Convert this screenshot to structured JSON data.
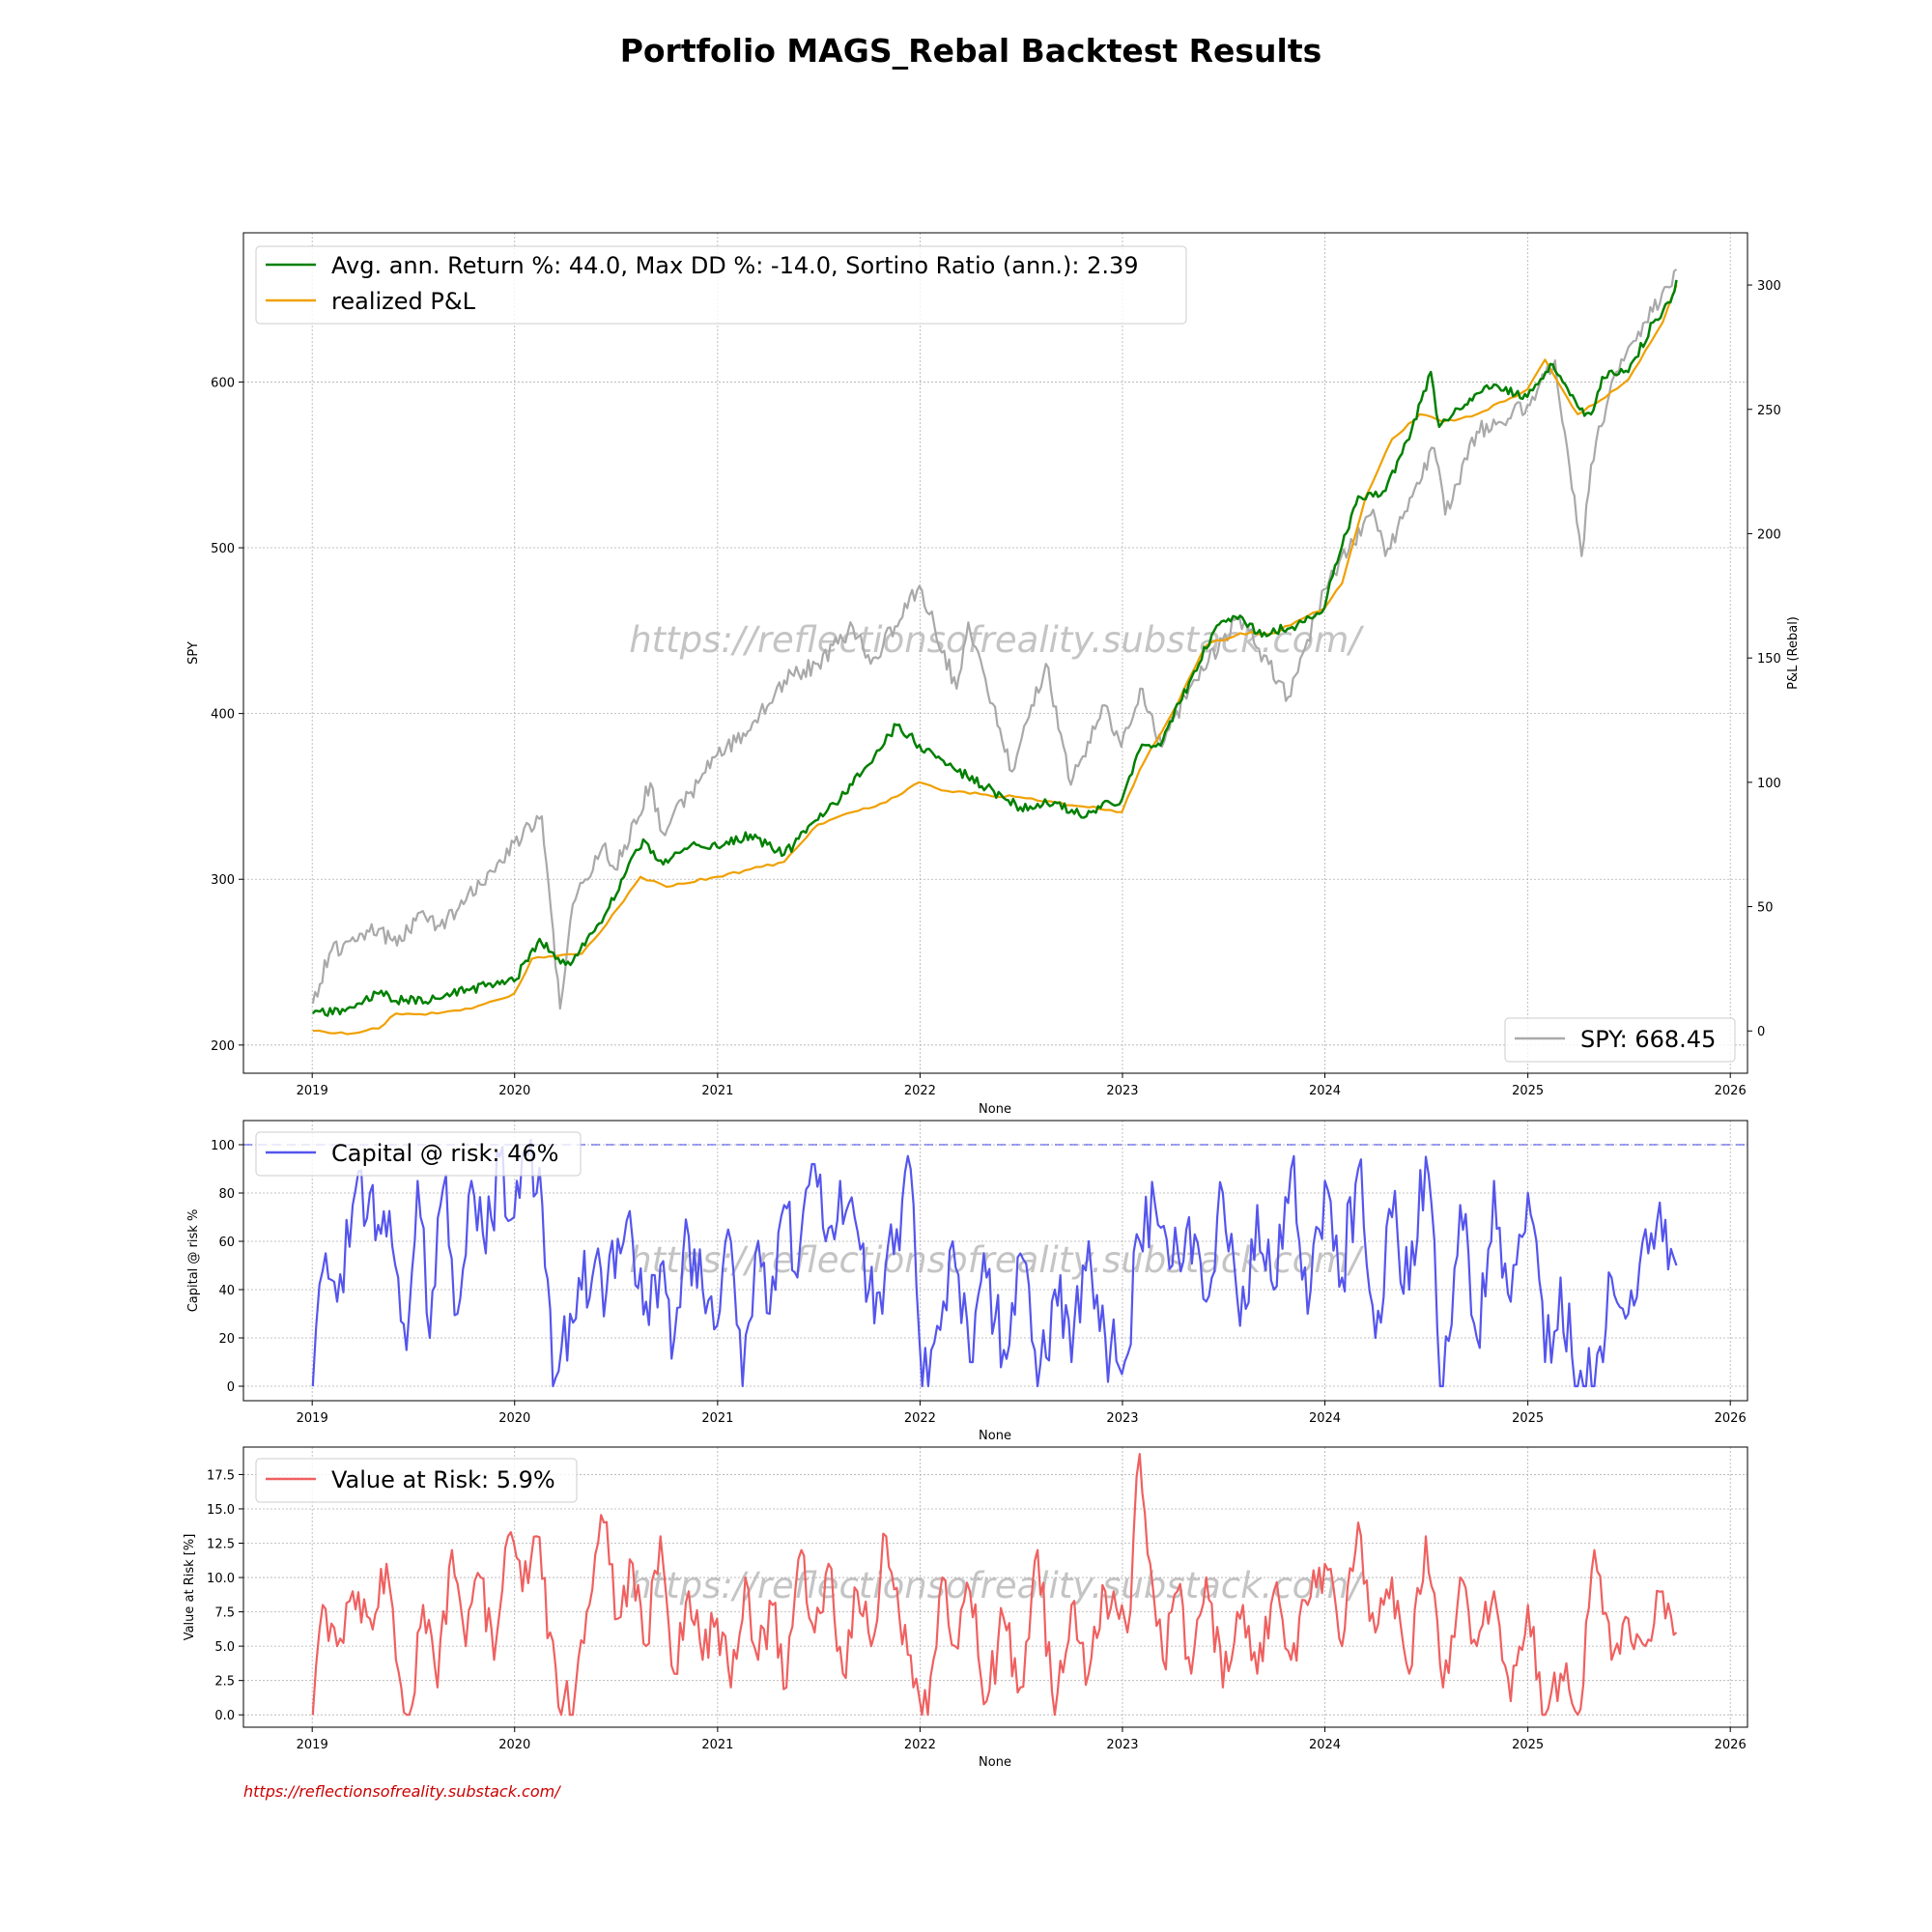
{
  "title": "Portfolio MAGS_Rebal Backtest Results",
  "footer_url": "https://reflectionsofreality.substack.com/",
  "watermark": "https://reflectionsofreality.substack.com/",
  "colors": {
    "pnl": "#008000",
    "realized": "#f0a000",
    "spy": "#a9a9a9",
    "car": "#5555ee",
    "var": "#f06060",
    "footer": "#cc0000"
  },
  "chart_data": [
    {
      "type": "line",
      "xlabel": "None",
      "ylabel_left": "SPY",
      "ylabel_right": "P&L (Rebal)",
      "x_ticks": [
        "2019",
        "2020",
        "2021",
        "2022",
        "2023",
        "2024",
        "2025",
        "2026"
      ],
      "xlim": [
        "2018-08-30",
        "2026-02-01"
      ],
      "y_left_ticks": [
        "200",
        "300",
        "400",
        "500",
        "600"
      ],
      "y_left_lim": [
        183,
        690
      ],
      "y_right_ticks": [
        "0",
        "50",
        "100",
        "150",
        "200",
        "250",
        "300"
      ],
      "y_right_lim": [
        -17,
        321
      ],
      "grid": true,
      "legend_top_left": {
        "pnl": "Avg. ann. Return %: 44.0, Max DD %: -14.0, Sortino Ratio (ann.): 2.39",
        "realized": "realized P&L"
      },
      "legend_bottom_right": {
        "spy": "SPY: 668.45"
      },
      "series": [
        {
          "name": "Avg. ann. Return %: 44.0, Max DD %: -14.0, Sortino Ratio (ann.): 2.39",
          "axis": "right",
          "x": [
            "2019-01-02",
            "2019-03-01",
            "2019-05-01",
            "2019-06-15",
            "2019-08-15",
            "2019-10-15",
            "2019-12-31",
            "2020-02-15",
            "2020-03-15",
            "2020-04-15",
            "2020-06-15",
            "2020-08-20",
            "2020-09-25",
            "2020-11-15",
            "2020-12-31",
            "2021-03-01",
            "2021-05-01",
            "2021-07-01",
            "2021-09-01",
            "2021-11-20",
            "2021-12-31",
            "2022-03-01",
            "2022-05-01",
            "2022-07-01",
            "2022-09-01",
            "2022-10-15",
            "2022-12-31",
            "2023-02-01",
            "2023-03-15",
            "2023-05-01",
            "2023-06-20",
            "2023-08-01",
            "2023-09-01",
            "2023-10-30",
            "2023-12-31",
            "2024-01-15",
            "2024-03-01",
            "2024-04-15",
            "2024-06-01",
            "2024-07-10",
            "2024-07-25",
            "2024-09-01",
            "2024-11-01",
            "2024-12-31",
            "2025-01-15",
            "2025-02-15",
            "2025-04-05",
            "2025-04-25",
            "2025-05-15",
            "2025-07-01",
            "2025-08-15",
            "2025-09-15",
            "2025-09-26"
          ],
          "y": [
            7,
            8,
            15,
            12,
            13,
            17,
            20,
            37,
            29,
            28,
            48,
            77,
            67,
            75,
            74,
            79,
            71,
            85,
            99,
            123,
            115,
            106,
            98,
            90,
            92,
            87,
            93,
            113,
            117,
            140,
            163,
            167,
            160,
            162,
            170,
            183,
            215,
            217,
            238,
            265,
            243,
            250,
            260,
            255,
            260,
            268,
            250,
            248,
            263,
            265,
            285,
            293,
            302
          ]
        },
        {
          "name": "realized P&L",
          "axis": "right",
          "x": [
            "2019-01-02",
            "2019-03-15",
            "2019-05-01",
            "2019-06-01",
            "2019-08-15",
            "2019-10-15",
            "2019-12-31",
            "2020-02-01",
            "2020-03-15",
            "2020-05-01",
            "2020-06-15",
            "2020-08-15",
            "2020-10-01",
            "2020-12-31",
            "2021-03-01",
            "2021-05-01",
            "2021-07-01",
            "2021-09-01",
            "2021-11-01",
            "2021-12-31",
            "2022-03-01",
            "2022-05-01",
            "2022-07-01",
            "2022-09-01",
            "2022-12-31",
            "2023-02-01",
            "2023-04-01",
            "2023-06-01",
            "2023-08-01",
            "2023-10-01",
            "2023-12-31",
            "2024-02-01",
            "2024-03-15",
            "2024-05-01",
            "2024-06-20",
            "2024-08-01",
            "2024-10-01",
            "2024-12-31",
            "2025-02-01",
            "2025-04-01",
            "2025-05-01",
            "2025-07-01",
            "2025-09-01",
            "2025-09-26"
          ],
          "y": [
            0,
            -1,
            1,
            7,
            7,
            9,
            15,
            29,
            30,
            31,
            43,
            62,
            58,
            62,
            65,
            68,
            83,
            88,
            92,
            100,
            96,
            95,
            94,
            92,
            88,
            105,
            128,
            155,
            160,
            160,
            170,
            180,
            215,
            238,
            248,
            245,
            248,
            258,
            270,
            248,
            252,
            262,
            285,
            300
          ]
        },
        {
          "name": "SPY: 668.45",
          "axis": "left",
          "x": [
            "2019-01-02",
            "2019-02-01",
            "2019-03-15",
            "2019-05-01",
            "2019-06-03",
            "2019-07-15",
            "2019-08-15",
            "2019-10-01",
            "2019-12-31",
            "2020-02-19",
            "2020-03-23",
            "2020-04-15",
            "2020-06-08",
            "2020-06-30",
            "2020-09-02",
            "2020-09-24",
            "2020-12-31",
            "2021-03-01",
            "2021-05-01",
            "2021-07-01",
            "2021-09-02",
            "2021-10-04",
            "2021-12-31",
            "2022-03-08",
            "2022-03-29",
            "2022-06-16",
            "2022-08-16",
            "2022-09-30",
            "2022-11-30",
            "2022-12-30",
            "2023-02-02",
            "2023-03-13",
            "2023-05-01",
            "2023-07-31",
            "2023-10-27",
            "2023-12-31",
            "2024-03-28",
            "2024-04-19",
            "2024-07-16",
            "2024-08-05",
            "2024-10-01",
            "2024-12-31",
            "2025-02-19",
            "2025-04-08",
            "2025-04-25",
            "2025-06-01",
            "2025-07-15",
            "2025-09-26"
          ],
          "y": [
            225,
            255,
            265,
            270,
            260,
            280,
            272,
            285,
            322,
            338,
            222,
            285,
            320,
            306,
            358,
            328,
            375,
            390,
            420,
            430,
            452,
            430,
            477,
            415,
            455,
            365,
            430,
            357,
            405,
            380,
            415,
            380,
            415,
            458,
            410,
            475,
            523,
            495,
            560,
            520,
            570,
            586,
            613,
            495,
            550,
            600,
            625,
            668
          ]
        }
      ]
    },
    {
      "type": "line",
      "xlabel": "None",
      "ylabel": "Capital @ risk %",
      "x_ticks": [
        "2019",
        "2020",
        "2021",
        "2022",
        "2023",
        "2024",
        "2025",
        "2026"
      ],
      "y_ticks": [
        "0",
        "20",
        "40",
        "60",
        "80",
        "100"
      ],
      "ylim": [
        -6,
        110
      ],
      "reference_line": 100,
      "grid": true,
      "legend": "Capital @ risk: 46%",
      "series": [
        {
          "name": "Capital @ risk: 46%",
          "x": [
            "2019-01-02",
            "2019-01-20",
            "2019-02-15",
            "2019-03-15",
            "2019-04-15",
            "2019-05-15",
            "2019-06-05",
            "2019-06-20",
            "2019-07-10",
            "2019-08-01",
            "2019-08-25",
            "2019-09-20",
            "2019-10-15",
            "2019-11-10",
            "2019-12-05",
            "2019-12-31",
            "2020-01-20",
            "2020-02-20",
            "2020-03-10",
            "2020-04-10",
            "2020-05-01",
            "2020-05-20",
            "2020-06-15",
            "2020-07-10",
            "2020-08-01",
            "2020-08-25",
            "2020-09-20",
            "2020-10-15",
            "2020-11-10",
            "2020-12-05",
            "2020-12-31",
            "2021-01-25",
            "2021-02-15",
            "2021-03-10",
            "2021-04-05",
            "2021-05-01",
            "2021-05-25",
            "2021-06-20",
            "2021-07-15",
            "2021-08-10",
            "2021-09-05",
            "2021-10-01",
            "2021-10-25",
            "2021-11-20",
            "2021-12-15",
            "2022-01-05",
            "2022-02-01",
            "2022-03-01",
            "2022-04-01",
            "2022-05-01",
            "2022-06-01",
            "2022-07-01",
            "2022-08-01",
            "2022-09-01",
            "2022-10-01",
            "2022-11-01",
            "2022-12-01",
            "2022-12-31",
            "2023-02-01",
            "2023-03-01",
            "2023-04-01",
            "2023-05-01",
            "2023-06-01",
            "2023-07-01",
            "2023-08-01",
            "2023-09-01",
            "2023-10-01",
            "2023-11-01",
            "2023-12-01",
            "2024-01-01",
            "2024-02-01",
            "2024-03-01",
            "2024-04-01",
            "2024-05-01",
            "2024-06-01",
            "2024-07-01",
            "2024-08-01",
            "2024-09-01",
            "2024-10-01",
            "2024-11-01",
            "2024-12-01",
            "2025-01-01",
            "2025-02-01",
            "2025-03-01",
            "2025-04-01",
            "2025-05-01",
            "2025-06-01",
            "2025-07-01",
            "2025-08-01",
            "2025-09-01",
            "2025-09-26"
          ],
          "y": [
            0,
            48,
            35,
            75,
            80,
            62,
            45,
            15,
            85,
            20,
            82,
            30,
            85,
            55,
            95,
            70,
            98,
            75,
            0,
            30,
            40,
            45,
            40,
            55,
            60,
            35,
            50,
            20,
            62,
            40,
            25,
            60,
            0,
            55,
            30,
            75,
            45,
            92,
            60,
            85,
            70,
            40,
            30,
            65,
            90,
            0,
            25,
            60,
            10,
            45,
            15,
            55,
            0,
            40,
            10,
            60,
            20,
            5,
            60,
            75,
            50,
            70,
            35,
            80,
            25,
            75,
            40,
            90,
            30,
            85,
            45,
            90,
            20,
            70,
            40,
            95,
            0,
            75,
            20,
            85,
            35,
            80,
            10,
            45,
            0,
            0,
            45,
            30,
            65,
            60,
            50
          ]
        }
      ]
    },
    {
      "type": "line",
      "xlabel": "None",
      "ylabel": "Value at Risk [%]",
      "x_ticks": [
        "2019",
        "2020",
        "2021",
        "2022",
        "2023",
        "2024",
        "2025",
        "2026"
      ],
      "y_ticks": [
        "0.0",
        "2.5",
        "5.0",
        "7.5",
        "10.0",
        "12.5",
        "15.0",
        "17.5"
      ],
      "ylim": [
        -0.9,
        19.5
      ],
      "grid": true,
      "legend": "Value at Risk: 5.9%",
      "series": [
        {
          "name": "Value at Risk: 5.9%",
          "x": [
            "2019-01-02",
            "2019-01-20",
            "2019-02-15",
            "2019-03-15",
            "2019-04-15",
            "2019-05-15",
            "2019-06-01",
            "2019-06-25",
            "2019-07-20",
            "2019-08-15",
            "2019-09-10",
            "2019-10-05",
            "2019-11-01",
            "2019-11-25",
            "2019-12-20",
            "2020-01-15",
            "2020-02-10",
            "2020-03-05",
            "2020-03-25",
            "2020-04-20",
            "2020-05-15",
            "2020-06-10",
            "2020-07-05",
            "2020-08-01",
            "2020-08-25",
            "2020-09-20",
            "2020-10-15",
            "2020-11-10",
            "2020-12-05",
            "2020-12-31",
            "2021-01-25",
            "2021-02-20",
            "2021-03-15",
            "2021-04-10",
            "2021-05-05",
            "2021-06-01",
            "2021-06-25",
            "2021-07-20",
            "2021-08-15",
            "2021-09-10",
            "2021-10-05",
            "2021-11-01",
            "2021-11-25",
            "2021-12-20",
            "2022-01-15",
            "2022-02-10",
            "2022-03-05",
            "2022-04-01",
            "2022-05-01",
            "2022-06-01",
            "2022-07-01",
            "2022-08-01",
            "2022-09-01",
            "2022-10-01",
            "2022-11-01",
            "2022-12-01",
            "2023-01-10",
            "2023-02-01",
            "2023-02-20",
            "2023-03-15",
            "2023-04-10",
            "2023-05-05",
            "2023-06-01",
            "2023-07-01",
            "2023-08-01",
            "2023-09-01",
            "2023-10-01",
            "2023-11-01",
            "2023-12-01",
            "2024-01-01",
            "2024-02-01",
            "2024-03-01",
            "2024-04-01",
            "2024-05-01",
            "2024-06-01",
            "2024-07-01",
            "2024-08-01",
            "2024-09-01",
            "2024-10-01",
            "2024-11-01",
            "2024-12-01",
            "2025-01-01",
            "2025-02-01",
            "2025-03-01",
            "2025-04-01",
            "2025-05-01",
            "2025-06-01",
            "2025-07-01",
            "2025-08-01",
            "2025-09-01",
            "2025-09-26"
          ],
          "y": [
            0,
            8,
            5,
            9,
            7,
            11,
            4,
            0,
            8,
            2,
            12,
            5,
            10,
            4,
            13,
            9,
            13,
            6,
            0,
            2,
            8,
            14,
            7,
            11,
            5,
            13,
            3,
            9,
            4,
            7,
            2,
            10,
            4,
            8,
            2,
            12,
            6,
            11,
            3,
            9,
            5,
            13,
            7,
            2,
            0,
            10,
            5,
            9,
            1,
            7,
            2,
            12,
            0,
            8,
            3,
            9,
            6,
            19,
            11,
            4,
            9,
            3,
            10,
            2,
            7,
            3,
            9,
            4,
            8,
            11,
            5,
            14,
            6,
            10,
            3,
            13,
            2,
            10,
            5,
            9,
            1,
            8,
            0,
            3,
            0,
            12,
            4,
            7,
            5,
            9,
            6
          ]
        }
      ]
    }
  ]
}
